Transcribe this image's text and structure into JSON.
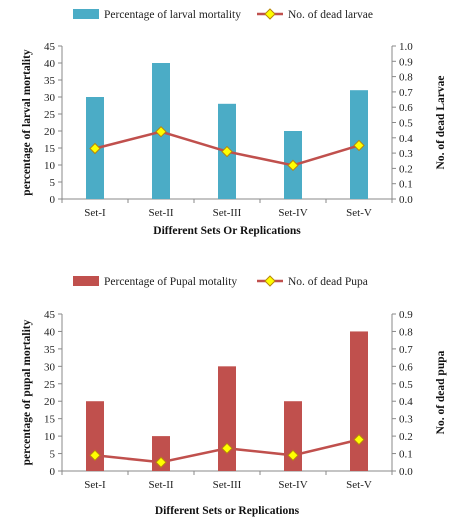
{
  "chart_data": [
    {
      "type": "bar",
      "categories": [
        "Set-I",
        "Set-II",
        "Set-III",
        "Set-IV",
        "Set-V"
      ],
      "series": [
        {
          "name": "Percentage of larval mortality",
          "type": "bar",
          "axis": "left",
          "color": "#4bacc6",
          "values": [
            30,
            40,
            28,
            20,
            32
          ]
        },
        {
          "name": "No. of dead larvae",
          "type": "line",
          "axis": "right",
          "color": "#c0504d",
          "marker_color": "#ffff00",
          "values": [
            0.33,
            0.44,
            0.31,
            0.22,
            0.35
          ]
        }
      ],
      "xlabel": "Different Sets Or Replications",
      "ylabel": "percentage of larval mortality",
      "y2label": "No. of dead Larvae",
      "ylim": [
        0,
        45
      ],
      "ytick_step": 5,
      "y2lim": [
        0,
        1.0
      ],
      "y2tick_step": 0.1,
      "grid": false,
      "legend_position": "top"
    },
    {
      "type": "bar",
      "categories": [
        "Set-I",
        "Set-II",
        "Set-III",
        "Set-IV",
        "Set-V"
      ],
      "series": [
        {
          "name": "Percentage of Pupal motality",
          "type": "bar",
          "axis": "left",
          "color": "#c0504d",
          "values": [
            20,
            10,
            30,
            20,
            40
          ]
        },
        {
          "name": "No. of dead Pupa",
          "type": "line",
          "axis": "right",
          "color": "#c0504d",
          "marker_color": "#ffff00",
          "values": [
            0.09,
            0.05,
            0.13,
            0.09,
            0.18
          ]
        }
      ],
      "xlabel": "Different Sets or Replications",
      "ylabel": "percentage of pupal mortality",
      "y2label": "No. of dead pupa",
      "ylim": [
        0,
        45
      ],
      "ytick_step": 5,
      "y2lim": [
        0,
        0.9
      ],
      "y2tick_step": 0.1,
      "grid": false,
      "legend_position": "top"
    }
  ]
}
